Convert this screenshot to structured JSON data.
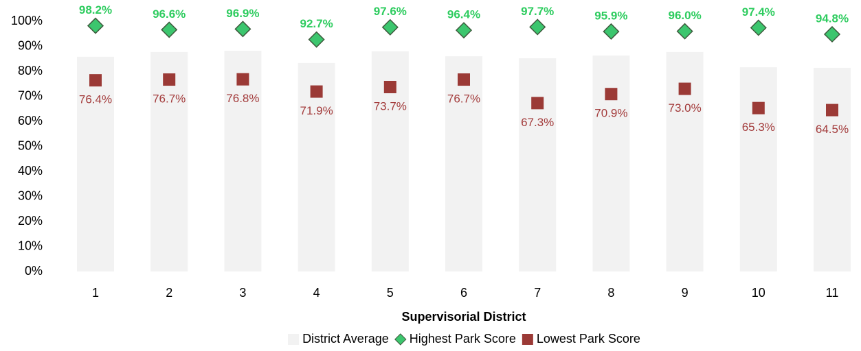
{
  "chart_data": {
    "type": "bar",
    "x_label": "Supervisorial District",
    "categories": [
      "1",
      "2",
      "3",
      "4",
      "5",
      "6",
      "7",
      "8",
      "9",
      "10",
      "11"
    ],
    "series": [
      {
        "name": "District Average",
        "marker": "bar",
        "color": "#f2f2f2",
        "values": [
          85.8,
          87.7,
          88.2,
          83.3,
          88.0,
          86.0,
          85.2,
          86.3,
          87.7,
          81.6,
          81.4
        ]
      },
      {
        "name": "Highest Park Score",
        "marker": "diamond",
        "color": "#3cc66e",
        "label_color": "#2ecc5f",
        "values": [
          98.2,
          96.6,
          96.9,
          92.7,
          97.6,
          96.4,
          97.7,
          95.9,
          96.0,
          97.4,
          94.8
        ],
        "value_labels": [
          "98.2%",
          "96.6%",
          "96.9%",
          "92.7%",
          "97.6%",
          "96.4%",
          "97.7%",
          "95.9%",
          "96.0%",
          "97.4%",
          "94.8%"
        ]
      },
      {
        "name": "Lowest Park Score",
        "marker": "square",
        "color": "#9b3a36",
        "label_color": "#a33b3b",
        "values": [
          76.4,
          76.7,
          76.8,
          71.9,
          73.7,
          76.7,
          67.3,
          70.9,
          73.0,
          65.3,
          64.5
        ],
        "value_labels": [
          "76.4%",
          "76.7%",
          "76.8%",
          "71.9%",
          "73.7%",
          "76.7%",
          "67.3%",
          "70.9%",
          "73.0%",
          "65.3%",
          "64.5%"
        ]
      }
    ],
    "ylim": [
      0,
      100
    ],
    "yticks": [
      {
        "value": 0,
        "label": "0%"
      },
      {
        "value": 10,
        "label": "10%"
      },
      {
        "value": 20,
        "label": "20%"
      },
      {
        "value": 30,
        "label": "30%"
      },
      {
        "value": 40,
        "label": "40%"
      },
      {
        "value": 50,
        "label": "50%"
      },
      {
        "value": 60,
        "label": "60%"
      },
      {
        "value": 70,
        "label": "70%"
      },
      {
        "value": 80,
        "label": "80%"
      },
      {
        "value": 90,
        "label": "90%"
      },
      {
        "value": 100,
        "label": "100%"
      }
    ],
    "grid": false,
    "legend": "bottom"
  }
}
